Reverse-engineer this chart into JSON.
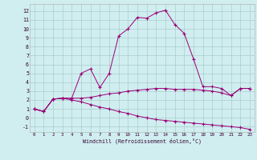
{
  "xlabel": "Windchill (Refroidissement éolien,°C)",
  "background_color": "#d0eef0",
  "grid_color": "#aacccc",
  "line_color": "#990077",
  "x_ticks": [
    0,
    1,
    2,
    3,
    4,
    5,
    6,
    7,
    8,
    9,
    10,
    11,
    12,
    13,
    14,
    15,
    16,
    17,
    18,
    19,
    20,
    21,
    22,
    23
  ],
  "y_ticks": [
    -1,
    0,
    1,
    2,
    3,
    4,
    5,
    6,
    7,
    8,
    9,
    10,
    11,
    12
  ],
  "xlim": [
    -0.5,
    23.5
  ],
  "ylim": [
    -1.6,
    12.8
  ],
  "series1_x": [
    0,
    1,
    2,
    3,
    4,
    5,
    6,
    7,
    8,
    9,
    10,
    11,
    12,
    13,
    14,
    15,
    16,
    17,
    18,
    19,
    20,
    21,
    22,
    23
  ],
  "series1_y": [
    1.0,
    0.7,
    2.1,
    2.2,
    2.2,
    5.0,
    5.5,
    3.4,
    5.0,
    9.2,
    10.0,
    11.3,
    11.2,
    11.8,
    12.1,
    10.5,
    9.5,
    6.6,
    3.5,
    3.5,
    3.3,
    2.5,
    3.3,
    3.3
  ],
  "series2_x": [
    0,
    1,
    2,
    3,
    4,
    5,
    6,
    7,
    8,
    9,
    10,
    11,
    12,
    13,
    14,
    15,
    16,
    17,
    18,
    19,
    20,
    21,
    22,
    23
  ],
  "series2_y": [
    1.0,
    0.7,
    2.1,
    2.2,
    2.2,
    2.2,
    2.3,
    2.5,
    2.7,
    2.8,
    3.0,
    3.1,
    3.2,
    3.3,
    3.3,
    3.2,
    3.2,
    3.2,
    3.1,
    3.0,
    2.8,
    2.5,
    3.3,
    3.3
  ],
  "series3_x": [
    0,
    1,
    2,
    3,
    4,
    5,
    6,
    7,
    8,
    9,
    10,
    11,
    12,
    13,
    14,
    15,
    16,
    17,
    18,
    19,
    20,
    21,
    22,
    23
  ],
  "series3_y": [
    1.0,
    0.7,
    2.1,
    2.2,
    2.0,
    1.8,
    1.5,
    1.2,
    1.0,
    0.7,
    0.5,
    0.2,
    0.0,
    -0.2,
    -0.3,
    -0.4,
    -0.5,
    -0.6,
    -0.7,
    -0.8,
    -0.9,
    -1.0,
    -1.1,
    -1.3
  ]
}
